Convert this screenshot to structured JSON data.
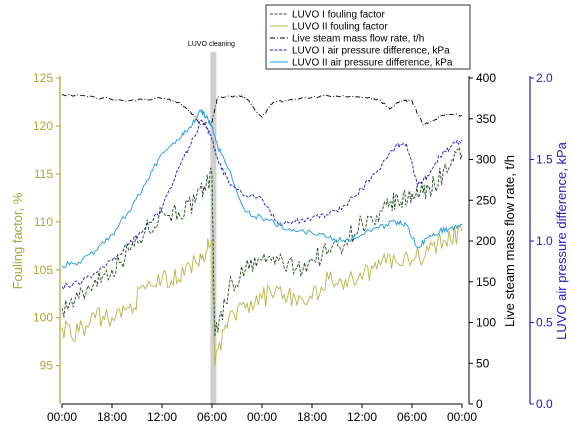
{
  "chart_data": {
    "type": "line",
    "annotation": "LUVO cleaning",
    "x_tick_labels": [
      "00:00",
      "18:00",
      "12:00",
      "06:00",
      "00:00",
      "18:00",
      "12:00",
      "06:00",
      "00:00"
    ],
    "xlim": [
      0,
      144
    ],
    "cleaning_x": 54.5,
    "axes": {
      "left": {
        "label": "Fouling factor, %",
        "range": [
          91,
          125
        ],
        "ticks": [
          95,
          100,
          105,
          110,
          115,
          120,
          125
        ],
        "color": "#a8a83a"
      },
      "middle": {
        "label": "Live steam mass flow rate, t/h",
        "range": [
          0,
          400
        ],
        "ticks": [
          0,
          50,
          100,
          150,
          200,
          250,
          300,
          350,
          400
        ],
        "color": "#000000"
      },
      "right": {
        "label": "LUVO air pressure difference, kPa",
        "range": [
          0.0,
          2.0
        ],
        "ticks": [
          "0.0",
          "0.5",
          "1.0",
          "1.5",
          "2.0"
        ],
        "color": "#1c1cbf"
      }
    },
    "grid": false,
    "legend_position": "top-right",
    "series": [
      {
        "name": "LUVO I fouling factor",
        "axis": "left",
        "color": "#1f4d1f",
        "dash": "3,1.5",
        "points": [
          [
            0,
            101
          ],
          [
            6,
            102
          ],
          [
            12,
            104
          ],
          [
            18,
            105
          ],
          [
            24,
            107
          ],
          [
            30,
            109
          ],
          [
            36,
            111
          ],
          [
            42,
            111
          ],
          [
            48,
            112
          ],
          [
            52,
            114
          ],
          [
            54,
            115
          ],
          [
            55,
            98
          ],
          [
            60,
            103
          ],
          [
            66,
            105
          ],
          [
            72,
            106
          ],
          [
            78,
            106
          ],
          [
            84,
            105
          ],
          [
            90,
            106
          ],
          [
            96,
            107
          ],
          [
            102,
            108
          ],
          [
            108,
            110
          ],
          [
            114,
            110
          ],
          [
            118,
            112
          ],
          [
            122,
            112
          ],
          [
            126,
            113
          ],
          [
            130,
            113
          ],
          [
            134,
            114
          ],
          [
            140,
            116
          ],
          [
            144,
            117
          ]
        ]
      },
      {
        "name": "LUVO II fouling factor",
        "axis": "left",
        "color": "#b5b548",
        "dash": "",
        "points": [
          [
            0,
            99
          ],
          [
            6,
            98.5
          ],
          [
            12,
            100
          ],
          [
            18,
            100
          ],
          [
            24,
            101
          ],
          [
            30,
            103
          ],
          [
            36,
            104
          ],
          [
            42,
            104
          ],
          [
            48,
            106
          ],
          [
            52,
            107
          ],
          [
            54,
            108
          ],
          [
            55,
            95
          ],
          [
            60,
            100
          ],
          [
            66,
            101
          ],
          [
            72,
            102
          ],
          [
            78,
            103
          ],
          [
            84,
            102
          ],
          [
            90,
            102
          ],
          [
            96,
            104
          ],
          [
            102,
            104
          ],
          [
            108,
            104
          ],
          [
            114,
            106
          ],
          [
            120,
            106
          ],
          [
            126,
            106
          ],
          [
            132,
            107
          ],
          [
            138,
            108
          ],
          [
            144,
            109
          ]
        ]
      },
      {
        "name": "Live steam mass flow rate, t/h",
        "axis": "middle",
        "color": "#000000",
        "dash": "5,2,1,2",
        "points": [
          [
            0,
            380
          ],
          [
            12,
            376
          ],
          [
            24,
            372
          ],
          [
            36,
            375
          ],
          [
            42,
            370
          ],
          [
            46,
            360
          ],
          [
            50,
            342
          ],
          [
            54,
            346
          ],
          [
            56,
            376
          ],
          [
            62,
            378
          ],
          [
            66,
            376
          ],
          [
            72,
            352
          ],
          [
            76,
            370
          ],
          [
            84,
            374
          ],
          [
            96,
            378
          ],
          [
            108,
            376
          ],
          [
            114,
            374
          ],
          [
            118,
            362
          ],
          [
            122,
            372
          ],
          [
            126,
            372
          ],
          [
            130,
            342
          ],
          [
            134,
            348
          ],
          [
            138,
            356
          ],
          [
            144,
            354
          ]
        ]
      },
      {
        "name": "LUVO I air pressure difference, kPa",
        "axis": "right",
        "color": "#1c1cbf",
        "dash": "3,1.5",
        "points": [
          [
            0,
            0.72
          ],
          [
            6,
            0.74
          ],
          [
            12,
            0.8
          ],
          [
            18,
            0.88
          ],
          [
            24,
            0.98
          ],
          [
            30,
            1.08
          ],
          [
            36,
            1.2
          ],
          [
            42,
            1.45
          ],
          [
            46,
            1.58
          ],
          [
            50,
            1.74
          ],
          [
            52,
            1.7
          ],
          [
            54,
            1.62
          ],
          [
            56,
            1.5
          ],
          [
            60,
            1.36
          ],
          [
            66,
            1.28
          ],
          [
            72,
            1.26
          ],
          [
            78,
            1.1
          ],
          [
            84,
            1.12
          ],
          [
            90,
            1.14
          ],
          [
            96,
            1.16
          ],
          [
            102,
            1.22
          ],
          [
            108,
            1.32
          ],
          [
            114,
            1.44
          ],
          [
            120,
            1.58
          ],
          [
            124,
            1.6
          ],
          [
            128,
            1.34
          ],
          [
            132,
            1.4
          ],
          [
            136,
            1.52
          ],
          [
            140,
            1.58
          ],
          [
            144,
            1.62
          ]
        ]
      },
      {
        "name": "LUVO II air pressure difference, kPa",
        "axis": "right",
        "color": "#1a9be0",
        "dash": "",
        "points": [
          [
            0,
            0.85
          ],
          [
            6,
            0.87
          ],
          [
            12,
            0.94
          ],
          [
            18,
            1.04
          ],
          [
            24,
            1.18
          ],
          [
            30,
            1.35
          ],
          [
            36,
            1.54
          ],
          [
            42,
            1.62
          ],
          [
            46,
            1.7
          ],
          [
            50,
            1.8
          ],
          [
            52,
            1.76
          ],
          [
            54,
            1.7
          ],
          [
            56,
            1.58
          ],
          [
            60,
            1.44
          ],
          [
            66,
            1.18
          ],
          [
            72,
            1.14
          ],
          [
            78,
            1.1
          ],
          [
            84,
            1.06
          ],
          [
            90,
            1.05
          ],
          [
            96,
            1.02
          ],
          [
            102,
            1.0
          ],
          [
            108,
            1.04
          ],
          [
            114,
            1.08
          ],
          [
            120,
            1.12
          ],
          [
            124,
            1.1
          ],
          [
            128,
            0.96
          ],
          [
            132,
            1.02
          ],
          [
            136,
            1.06
          ],
          [
            140,
            1.08
          ],
          [
            144,
            1.1
          ]
        ]
      }
    ]
  }
}
